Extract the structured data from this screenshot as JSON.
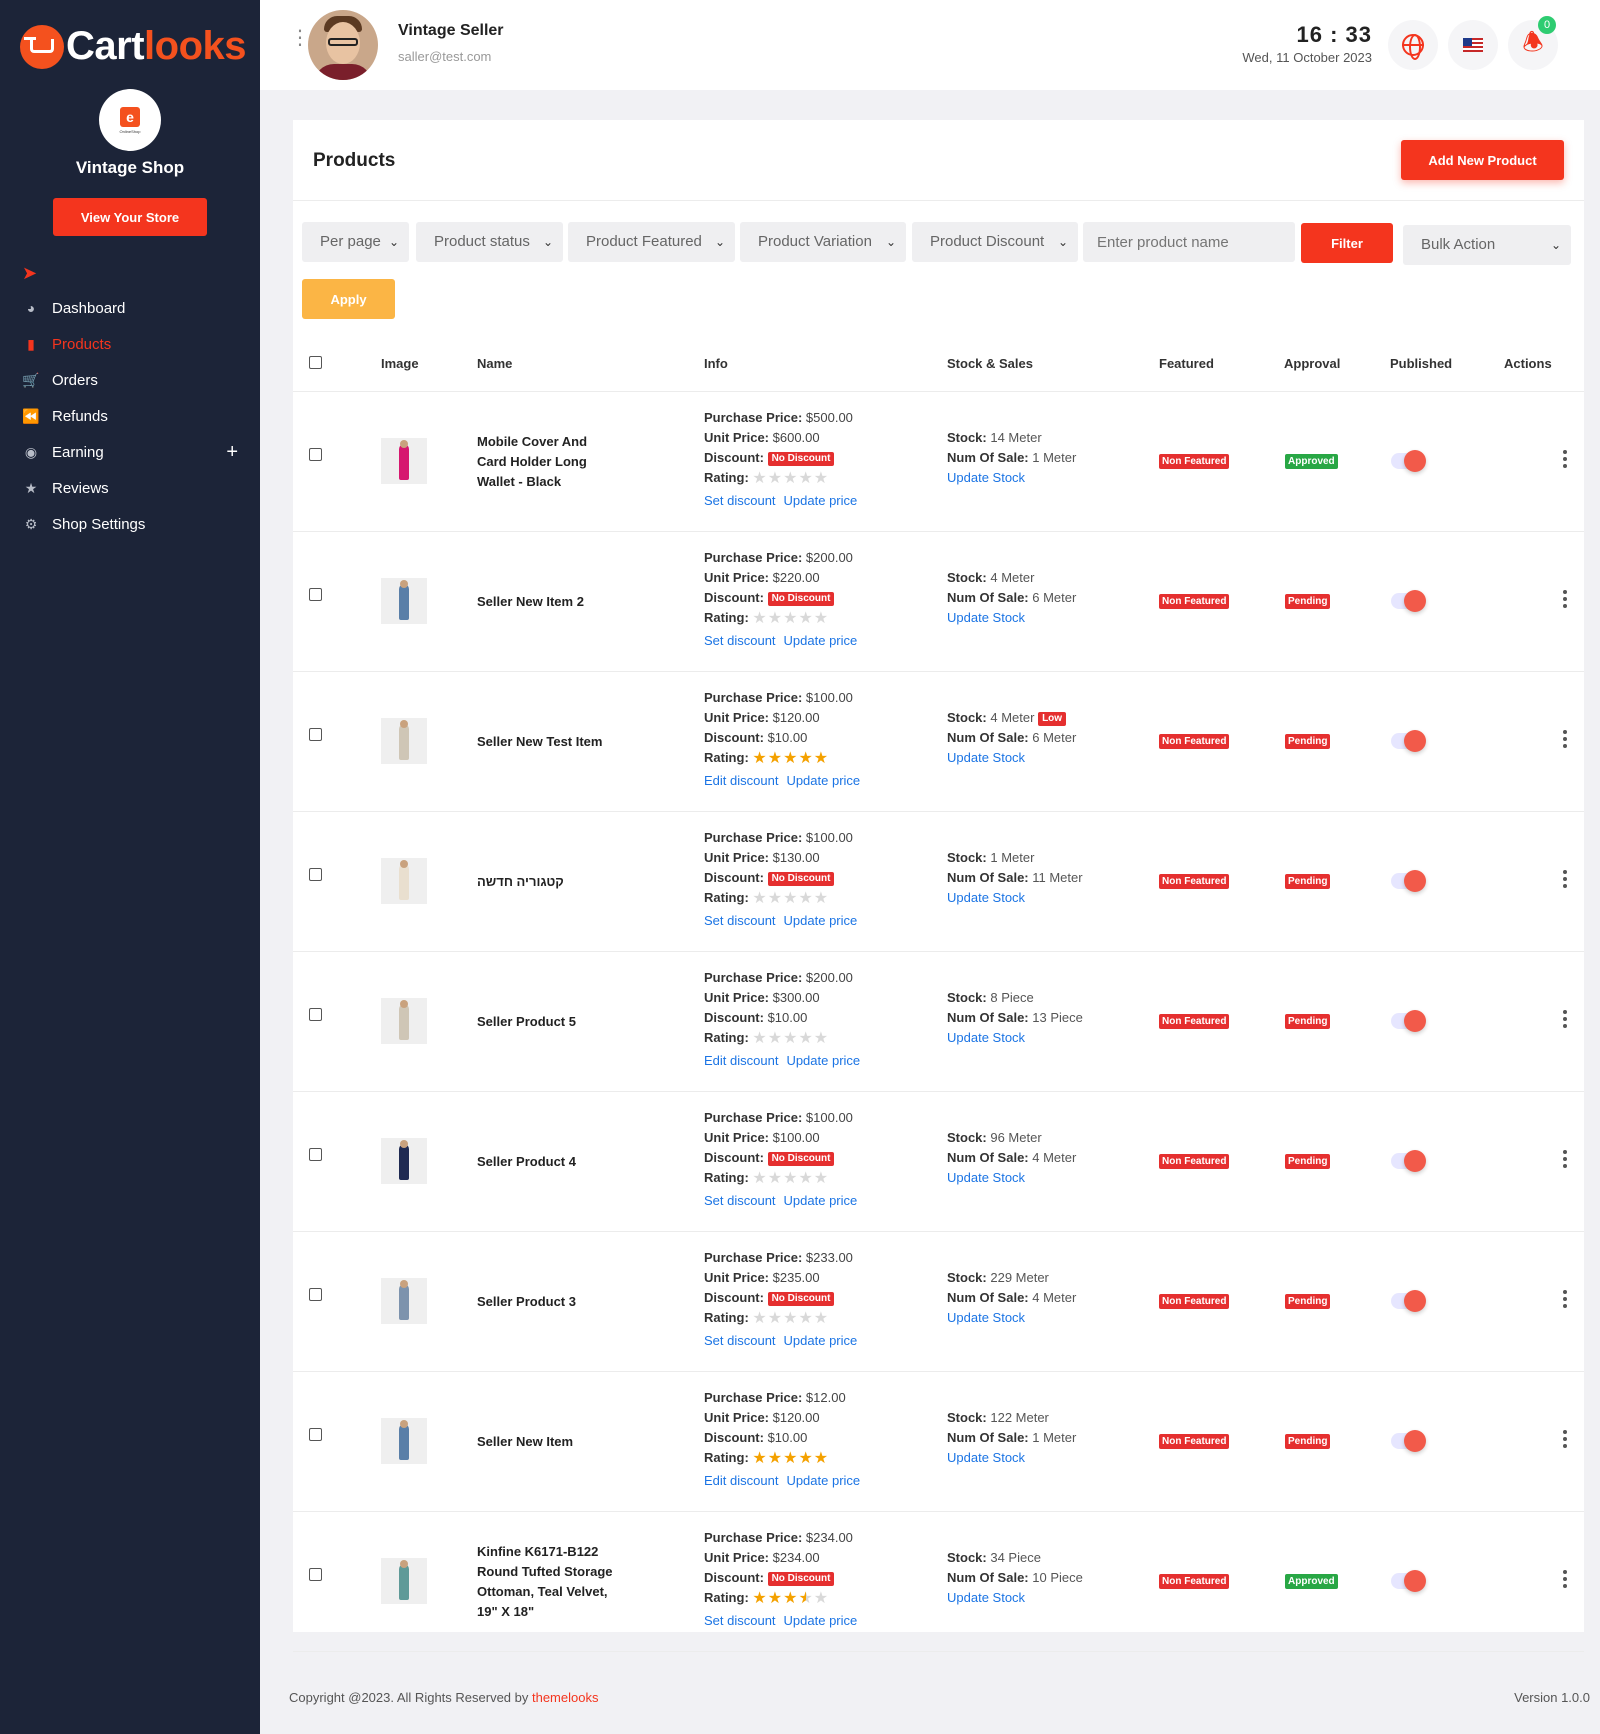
{
  "brand": {
    "name_main": "Cart",
    "name_accent": "looks"
  },
  "shop": {
    "logo_text": "e",
    "logo_caption": "OnlineShop",
    "name": "Vintage Shop",
    "view_store_label": "View Your Store"
  },
  "sidebar": {
    "items": [
      {
        "label": "Dashboard",
        "icon": "dashboard-gauge-icon"
      },
      {
        "label": "Products",
        "icon": "bag-icon",
        "active": true
      },
      {
        "label": "Orders",
        "icon": "cart-icon"
      },
      {
        "label": "Refunds",
        "icon": "rewind-icon"
      },
      {
        "label": "Earning",
        "icon": "money-bag-icon",
        "expandable": true
      },
      {
        "label": "Reviews",
        "icon": "star-icon"
      },
      {
        "label": "Shop Settings",
        "icon": "gears-icon"
      }
    ]
  },
  "topbar": {
    "user_name": "Vintage Seller",
    "user_email": "saller@test.com",
    "time": "16 : 33",
    "date": "Wed, 11 October 2023",
    "notification_count": "0"
  },
  "products_page": {
    "title": "Products",
    "add_button": "Add New Product",
    "filters": {
      "per_page": "Per page",
      "status": "Product status",
      "featured": "Product Featured",
      "variation": "Product Variation",
      "discount": "Product Discount",
      "search_placeholder": "Enter product name",
      "filter_button": "Filter",
      "bulk_action": "Bulk Action",
      "apply_button": "Apply"
    },
    "columns": {
      "image": "Image",
      "name": "Name",
      "info": "Info",
      "stock_sales": "Stock & Sales",
      "featured": "Featured",
      "approval": "Approval",
      "published": "Published",
      "actions": "Actions"
    },
    "labels": {
      "purchase_price": "Purchase Price:",
      "unit_price": "Unit Price:",
      "discount": "Discount:",
      "rating": "Rating:",
      "stock": "Stock:",
      "num_of_sale": "Num Of Sale:",
      "update_stock": "Update Stock",
      "update_price": "Update price",
      "no_discount": "No Discount",
      "low": "Low"
    },
    "rows": [
      {
        "name": "Mobile Cover And Card Holder Long Wallet - Black",
        "purchase": "$500.00",
        "unit": "$600.00",
        "discount": "",
        "rating": 0,
        "discount_link": "Set discount",
        "stock": "14 Meter",
        "low": false,
        "sales": "1 Meter",
        "featured": "Non Featured",
        "approval": "Approved",
        "thumb_color": "#d6186f"
      },
      {
        "name": "Seller New Item 2",
        "purchase": "$200.00",
        "unit": "$220.00",
        "discount": "",
        "rating": 0,
        "discount_link": "Set discount",
        "stock": "4 Meter",
        "low": false,
        "sales": "6 Meter",
        "featured": "Non Featured",
        "approval": "Pending",
        "thumb_color": "#5a7fa8"
      },
      {
        "name": "Seller New Test Item",
        "purchase": "$100.00",
        "unit": "$120.00",
        "discount": "$10.00",
        "rating": 5,
        "discount_link": "Edit discount",
        "stock": "4 Meter",
        "low": true,
        "sales": "6 Meter",
        "featured": "Non Featured",
        "approval": "Pending",
        "thumb_color": "#cfc6b6"
      },
      {
        "name": "קטגוריה חדשה",
        "purchase": "$100.00",
        "unit": "$130.00",
        "discount": "",
        "rating": 0,
        "discount_link": "Set discount",
        "stock": "1 Meter",
        "low": false,
        "sales": "11 Meter",
        "featured": "Non Featured",
        "approval": "Pending",
        "thumb_color": "#e9dfcf"
      },
      {
        "name": "Seller Product 5",
        "purchase": "$200.00",
        "unit": "$300.00",
        "discount": "$10.00",
        "rating": 0,
        "discount_link": "Edit discount",
        "stock": "8 Piece",
        "low": false,
        "sales": "13 Piece",
        "featured": "Non Featured",
        "approval": "Pending",
        "thumb_color": "#cfc6b6"
      },
      {
        "name": "Seller Product 4",
        "purchase": "$100.00",
        "unit": "$100.00",
        "discount": "",
        "rating": 0,
        "discount_link": "Set discount",
        "stock": "96 Meter",
        "low": false,
        "sales": "4 Meter",
        "featured": "Non Featured",
        "approval": "Pending",
        "thumb_color": "#1f2a52"
      },
      {
        "name": "Seller Product 3",
        "purchase": "$233.00",
        "unit": "$235.00",
        "discount": "",
        "rating": 0,
        "discount_link": "Set discount",
        "stock": "229 Meter",
        "low": false,
        "sales": "4 Meter",
        "featured": "Non Featured",
        "approval": "Pending",
        "thumb_color": "#7d93ad"
      },
      {
        "name": "Seller New Item",
        "purchase": "$12.00",
        "unit": "$120.00",
        "discount": "$10.00",
        "rating": 5,
        "discount_link": "Edit discount",
        "stock": "122 Meter",
        "low": false,
        "sales": "1 Meter",
        "featured": "Non Featured",
        "approval": "Pending",
        "thumb_color": "#5a7fa8"
      },
      {
        "name": "Kinfine K6171-B122 Round Tufted Storage Ottoman, Teal Velvet, 19\" X 18\"",
        "purchase": "$234.00",
        "unit": "$234.00",
        "discount": "",
        "rating": 3.5,
        "discount_link": "Set discount",
        "stock": "34 Piece",
        "low": false,
        "sales": "10 Piece",
        "featured": "Non Featured",
        "approval": "Approved",
        "thumb_color": "#5f9a98"
      }
    ]
  },
  "footer": {
    "copyright": "Copyright @2023. All Rights Reserved by ",
    "brand": "themelooks",
    "version": "Version 1.0.0"
  }
}
